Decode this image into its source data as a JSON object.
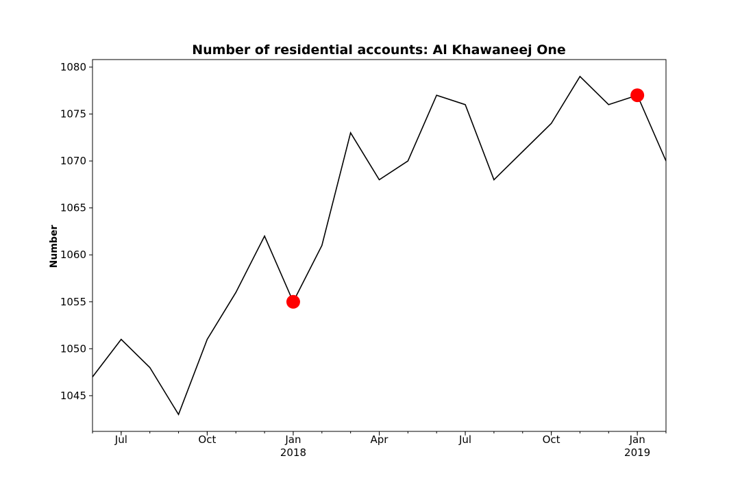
{
  "chart_data": {
    "type": "line",
    "title": "Number of residential accounts: Al Khawaneej One",
    "xlabel": "",
    "ylabel": "Number",
    "x": [
      "2017-06",
      "2017-07",
      "2017-08",
      "2017-09",
      "2017-10",
      "2017-11",
      "2017-12",
      "2018-01",
      "2018-02",
      "2018-03",
      "2018-04",
      "2018-05",
      "2018-06",
      "2018-07",
      "2018-08",
      "2018-09",
      "2018-10",
      "2018-11",
      "2018-12",
      "2019-01",
      "2019-02"
    ],
    "series": [
      {
        "values": [
          1047,
          1051,
          1048,
          1043,
          1051,
          1056,
          1062,
          1055,
          1061,
          1073,
          1068,
          1070,
          1077,
          1076,
          1068,
          1071,
          1074,
          1079,
          1076,
          1077,
          1070
        ],
        "color": "#000000"
      }
    ],
    "highlighted_points": [
      {
        "x": "2018-01",
        "y": 1055
      },
      {
        "x": "2019-01",
        "y": 1077
      }
    ],
    "highlight_color": "#ff0000",
    "xlim": [
      "2017-06",
      "2019-02"
    ],
    "ylim": [
      1041.2,
      1080.8
    ],
    "yticks": [
      1045,
      1050,
      1055,
      1060,
      1065,
      1070,
      1075,
      1080
    ],
    "xticks_major": [
      {
        "x": "2017-07",
        "label": "Jul",
        "year": ""
      },
      {
        "x": "2017-10",
        "label": "Oct",
        "year": ""
      },
      {
        "x": "2018-01",
        "label": "Jan",
        "year": "2018"
      },
      {
        "x": "2018-04",
        "label": "Apr",
        "year": ""
      },
      {
        "x": "2018-07",
        "label": "Jul",
        "year": ""
      },
      {
        "x": "2018-10",
        "label": "Oct",
        "year": ""
      },
      {
        "x": "2019-01",
        "label": "Jan",
        "year": "2019"
      }
    ],
    "grid": false,
    "legend": "none"
  }
}
